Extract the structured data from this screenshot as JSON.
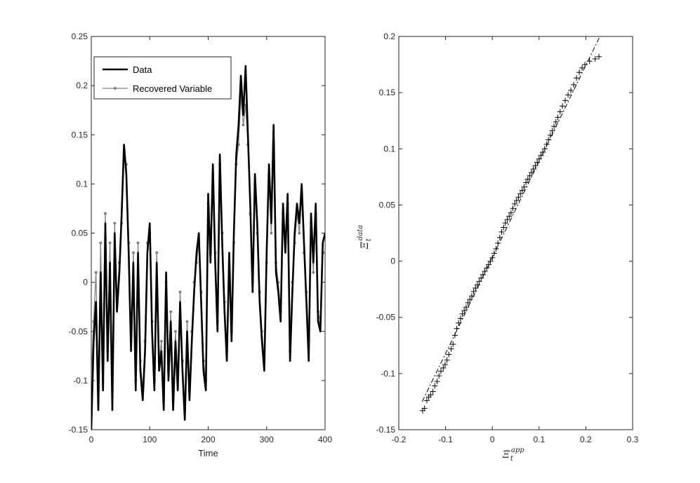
{
  "chart_data": [
    {
      "type": "line",
      "xlabel": "Time",
      "ylabel": "",
      "xlim": [
        0,
        400
      ],
      "ylim": [
        -0.15,
        0.25
      ],
      "xticks": [
        0,
        100,
        200,
        300,
        400
      ],
      "yticks": [
        -0.15,
        -0.1,
        -0.05,
        0,
        0.05,
        0.1,
        0.15,
        0.2,
        0.25
      ],
      "xtick_labels": [
        "0",
        "100",
        "200",
        "300",
        "400"
      ],
      "ytick_labels": [
        "-0.15",
        "-0.1",
        "-0.05",
        "0",
        "0.05",
        "0.1",
        "0.15",
        "0.2",
        "0.25"
      ],
      "grid": false,
      "legend_position": "top-left",
      "series": [
        {
          "name": "Data",
          "color": "#000000",
          "x": [
            0,
            4,
            8,
            12,
            16,
            20,
            24,
            28,
            32,
            36,
            40,
            44,
            48,
            52,
            56,
            60,
            64,
            68,
            72,
            76,
            80,
            84,
            88,
            92,
            96,
            100,
            104,
            108,
            112,
            116,
            120,
            124,
            128,
            132,
            136,
            140,
            144,
            148,
            152,
            156,
            160,
            164,
            168,
            172,
            176,
            180,
            184,
            188,
            192,
            196,
            200,
            204,
            208,
            212,
            216,
            220,
            224,
            228,
            232,
            236,
            240,
            244,
            248,
            252,
            256,
            260,
            264,
            268,
            272,
            276,
            280,
            284,
            288,
            292,
            296,
            300,
            304,
            308,
            312,
            316,
            320,
            324,
            328,
            332,
            336,
            340,
            344,
            348,
            352,
            356,
            360,
            364,
            368,
            372,
            376,
            380,
            384,
            388,
            392,
            396,
            400
          ],
          "values": [
            -0.15,
            -0.06,
            -0.02,
            -0.13,
            0.01,
            -0.11,
            0.06,
            -0.08,
            0.02,
            -0.13,
            0.05,
            -0.03,
            0.01,
            0.07,
            0.14,
            0.11,
            0.03,
            -0.07,
            0.02,
            -0.11,
            0.03,
            -0.09,
            -0.12,
            -0.07,
            0.03,
            0.06,
            -0.05,
            -0.11,
            0.02,
            -0.09,
            -0.07,
            -0.13,
            0.01,
            -0.1,
            -0.04,
            -0.13,
            -0.06,
            -0.11,
            -0.02,
            -0.09,
            -0.14,
            -0.05,
            -0.12,
            -0.06,
            -0.01,
            0.03,
            0.05,
            -0.02,
            -0.09,
            -0.11,
            0.09,
            0.02,
            0.12,
            0.02,
            -0.05,
            0.13,
            0.04,
            -0.03,
            -0.08,
            0.03,
            -0.06,
            0.05,
            0.13,
            0.16,
            0.21,
            0.17,
            0.22,
            0.15,
            0.08,
            -0.01,
            0.11,
            0.06,
            -0.02,
            -0.06,
            -0.09,
            0.03,
            0.12,
            0.06,
            0.16,
            0.01,
            -0.01,
            -0.04,
            0.08,
            0.03,
            0.09,
            -0.08,
            -0.01,
            0.05,
            0.08,
            0.06,
            0.1,
            0.04,
            -0.02,
            -0.08,
            0.07,
            0.02,
            0.08,
            -0.04,
            -0.05,
            0.04,
            0.05
          ]
        },
        {
          "name": "Recovered Variable",
          "color": "#808080",
          "x": [
            0,
            4,
            8,
            12,
            16,
            20,
            24,
            28,
            32,
            36,
            40,
            44,
            48,
            52,
            56,
            60,
            64,
            68,
            72,
            76,
            80,
            84,
            88,
            92,
            96,
            100,
            104,
            108,
            112,
            116,
            120,
            124,
            128,
            132,
            136,
            140,
            144,
            148,
            152,
            156,
            160,
            164,
            168,
            172,
            176,
            180,
            184,
            188,
            192,
            196,
            200,
            204,
            208,
            212,
            216,
            220,
            224,
            228,
            232,
            236,
            240,
            244,
            248,
            252,
            256,
            260,
            264,
            268,
            272,
            276,
            280,
            284,
            288,
            292,
            296,
            300,
            304,
            308,
            312,
            316,
            320,
            324,
            328,
            332,
            336,
            340,
            344,
            348,
            352,
            356,
            360,
            364,
            368,
            372,
            376,
            380,
            384,
            388,
            392,
            396,
            400
          ],
          "values": [
            -0.1,
            -0.04,
            0.01,
            -0.11,
            0.04,
            -0.08,
            0.07,
            -0.07,
            0.04,
            -0.11,
            0.06,
            -0.02,
            0.02,
            0.06,
            0.13,
            0.12,
            0.04,
            -0.06,
            0.03,
            -0.1,
            0.04,
            -0.08,
            -0.11,
            -0.06,
            0.04,
            0.05,
            -0.04,
            -0.1,
            0.03,
            -0.08,
            -0.06,
            -0.12,
            0.0,
            -0.09,
            -0.03,
            -0.12,
            -0.05,
            -0.1,
            -0.01,
            -0.08,
            -0.13,
            -0.04,
            -0.11,
            -0.05,
            0.0,
            0.02,
            0.04,
            -0.01,
            -0.08,
            -0.1,
            0.08,
            0.03,
            0.11,
            0.03,
            -0.04,
            0.12,
            0.05,
            -0.02,
            -0.07,
            0.02,
            -0.05,
            0.04,
            0.12,
            0.14,
            0.19,
            0.16,
            0.18,
            0.14,
            0.07,
            0.0,
            0.1,
            0.05,
            -0.01,
            -0.05,
            -0.08,
            0.02,
            0.11,
            0.05,
            0.14,
            0.02,
            0.0,
            -0.03,
            0.07,
            0.04,
            0.08,
            -0.07,
            0.0,
            0.04,
            0.07,
            0.05,
            0.09,
            0.03,
            -0.01,
            -0.06,
            0.06,
            0.01,
            0.07,
            -0.03,
            -0.04,
            0.03,
            0.03
          ]
        }
      ]
    },
    {
      "type": "scatter",
      "xlabel": "Ξ_t^app",
      "ylabel": "Ξ_t^data",
      "xlabel_main": "Ξ",
      "xlabel_sub": "t",
      "xlabel_sup": "app",
      "ylabel_main": "Ξ",
      "ylabel_sub": "t",
      "ylabel_sup": "data",
      "xlim": [
        -0.2,
        0.3
      ],
      "ylim": [
        -0.15,
        0.2
      ],
      "xticks": [
        -0.2,
        -0.1,
        0,
        0.1,
        0.2,
        0.3
      ],
      "yticks": [
        -0.15,
        -0.1,
        -0.05,
        0,
        0.05,
        0.1,
        0.15,
        0.2
      ],
      "xtick_labels": [
        "-0.2",
        "-0.1",
        "0",
        "0.1",
        "0.2",
        "0.3"
      ],
      "ytick_labels": [
        "-0.15",
        "-0.1",
        "-0.05",
        "0",
        "0.05",
        "0.1",
        "0.15",
        "0.2"
      ],
      "grid": false,
      "marker": "+",
      "reference_line": {
        "style": "dash-dot",
        "x": [
          -0.15,
          0.23
        ],
        "y": [
          -0.125,
          0.2
        ]
      },
      "points": [
        [
          -0.149,
          -0.133
        ],
        [
          -0.145,
          -0.131
        ],
        [
          -0.14,
          -0.124
        ],
        [
          -0.136,
          -0.121
        ],
        [
          -0.132,
          -0.119
        ],
        [
          -0.127,
          -0.116
        ],
        [
          -0.123,
          -0.111
        ],
        [
          -0.118,
          -0.107
        ],
        [
          -0.114,
          -0.102
        ],
        [
          -0.11,
          -0.098
        ],
        [
          -0.105,
          -0.095
        ],
        [
          -0.101,
          -0.092
        ],
        [
          -0.097,
          -0.088
        ],
        [
          -0.093,
          -0.083
        ],
        [
          -0.088,
          -0.078
        ],
        [
          -0.084,
          -0.074
        ],
        [
          -0.08,
          -0.066
        ],
        [
          -0.076,
          -0.06
        ],
        [
          -0.072,
          -0.055
        ],
        [
          -0.068,
          -0.051
        ],
        [
          -0.064,
          -0.047
        ],
        [
          -0.06,
          -0.044
        ],
        [
          -0.056,
          -0.041
        ],
        [
          -0.052,
          -0.037
        ],
        [
          -0.048,
          -0.034
        ],
        [
          -0.044,
          -0.031
        ],
        [
          -0.04,
          -0.027
        ],
        [
          -0.036,
          -0.024
        ],
        [
          -0.032,
          -0.021
        ],
        [
          -0.028,
          -0.018
        ],
        [
          -0.024,
          -0.015
        ],
        [
          -0.02,
          -0.012
        ],
        [
          -0.016,
          -0.009
        ],
        [
          -0.012,
          -0.006
        ],
        [
          -0.008,
          -0.003
        ],
        [
          -0.004,
          0.0
        ],
        [
          0.0,
          0.003
        ],
        [
          0.004,
          0.007
        ],
        [
          0.008,
          0.011
        ],
        [
          0.012,
          0.016
        ],
        [
          0.016,
          0.021
        ],
        [
          0.02,
          0.026
        ],
        [
          0.024,
          0.03
        ],
        [
          0.028,
          0.034
        ],
        [
          0.032,
          0.037
        ],
        [
          0.036,
          0.04
        ],
        [
          0.04,
          0.043
        ],
        [
          0.044,
          0.047
        ],
        [
          0.048,
          0.051
        ],
        [
          0.052,
          0.054
        ],
        [
          0.056,
          0.057
        ],
        [
          0.06,
          0.06
        ],
        [
          0.064,
          0.063
        ],
        [
          0.068,
          0.066
        ],
        [
          0.072,
          0.07
        ],
        [
          0.076,
          0.073
        ],
        [
          0.08,
          0.076
        ],
        [
          0.084,
          0.079
        ],
        [
          0.088,
          0.082
        ],
        [
          0.092,
          0.085
        ],
        [
          0.096,
          0.088
        ],
        [
          0.1,
          0.091
        ],
        [
          0.104,
          0.094
        ],
        [
          0.108,
          0.097
        ],
        [
          0.112,
          0.1
        ],
        [
          0.116,
          0.104
        ],
        [
          0.12,
          0.108
        ],
        [
          0.124,
          0.112
        ],
        [
          0.128,
          0.116
        ],
        [
          0.132,
          0.12
        ],
        [
          0.136,
          0.124
        ],
        [
          0.14,
          0.128
        ],
        [
          0.145,
          0.133
        ],
        [
          0.15,
          0.138
        ],
        [
          0.156,
          0.143
        ],
        [
          0.162,
          0.148
        ],
        [
          0.168,
          0.152
        ],
        [
          0.174,
          0.157
        ],
        [
          0.18,
          0.163
        ],
        [
          0.186,
          0.168
        ],
        [
          0.192,
          0.172
        ],
        [
          0.198,
          0.175
        ],
        [
          0.208,
          0.178
        ],
        [
          0.22,
          0.18
        ],
        [
          0.228,
          0.182
        ]
      ]
    }
  ]
}
